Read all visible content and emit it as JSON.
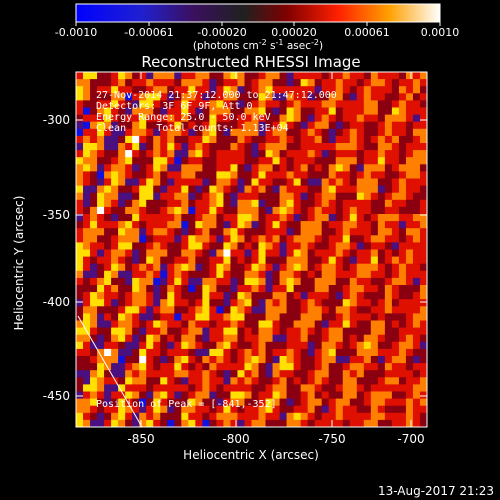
{
  "colorbar": {
    "ticks": [
      "-0.0010",
      "-0.00061",
      "-0.00020",
      "0.00020",
      "0.00061",
      "0.0010"
    ],
    "unit_main": "(photons cm",
    "unit_sup1": "-2",
    "unit_mid1": " s",
    "unit_sup2": "-1",
    "unit_mid2": " asec",
    "unit_sup3": "-2",
    "unit_end": ")"
  },
  "title": "Reconstructed RHESSI Image",
  "annotations": [
    "27-Nov-2014 21:37:12.000 to 21:47:12.000",
    "Detectors: 3F 6F 9F, Att 0",
    "Energy Range: 25.0 - 50.0 keV",
    "Clean     Total counts: 1.13E+04"
  ],
  "peak_label": "Position of Peak = [-841,-352]",
  "axes": {
    "xlabel": "Heliocentric X (arcsec)",
    "ylabel": "Heliocentric Y (arcsec)",
    "xticks": [
      "-850",
      "-800",
      "-750",
      "-700"
    ],
    "yticks": [
      "-300",
      "-350",
      "-400",
      "-450"
    ],
    "xlim": [
      -876,
      -695
    ],
    "ylim": [
      -470,
      -280
    ]
  },
  "footer_date": "13-Aug-2017 21:23",
  "palette": {
    "deep_blue": "#1010e0",
    "purple": "#4a1080",
    "dark_red": "#8a0010",
    "red": "#e01000",
    "orange": "#ff8000",
    "yellow": "#ffe000",
    "white": "#ffffff"
  }
}
